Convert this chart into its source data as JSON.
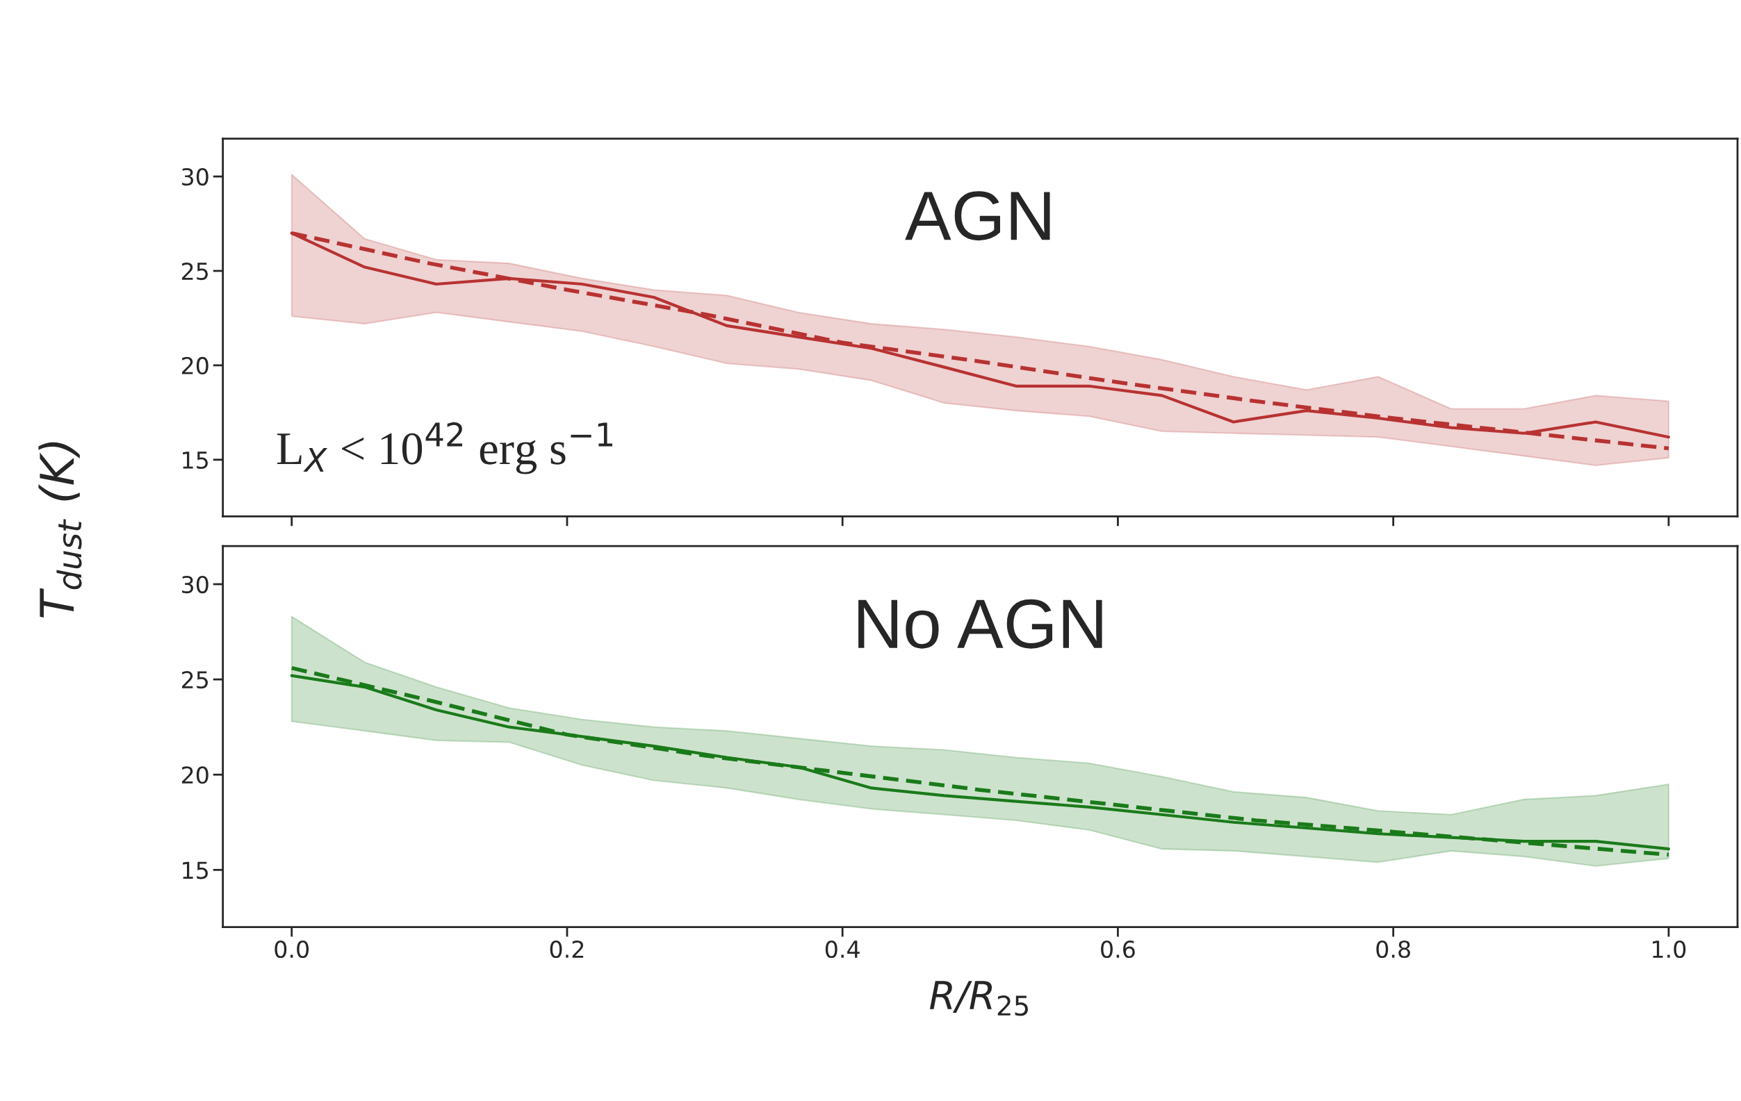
{
  "chart_data": [
    {
      "type": "line",
      "ylabel": "T$_{dust}$ (K)",
      "annotations": [
        "AGN",
        "L$_{X}$ < 10$^{42}$ erg s$^{−1}$"
      ],
      "xlim": [
        -0.05,
        1.05
      ],
      "xticks": [
        0.0,
        0.2,
        0.4,
        0.6,
        0.8,
        1.0
      ],
      "ylim": [
        12,
        32
      ],
      "yticks": [
        15,
        20,
        25,
        30
      ],
      "tick_labels": "y",
      "grid": false,
      "legend": false,
      "x": [
        0,
        0.053,
        0.105,
        0.158,
        0.211,
        0.263,
        0.316,
        0.368,
        0.421,
        0.474,
        0.526,
        0.579,
        0.632,
        0.684,
        0.737,
        0.789,
        0.842,
        0.895,
        0.947,
        1.0
      ],
      "series": [
        {
          "color": "#b83232",
          "line_style": "solid",
          "values": [
            27.0,
            25.2,
            24.3,
            24.6,
            24.3,
            23.6,
            22.1,
            21.5,
            20.9,
            19.9,
            18.9,
            18.9,
            18.4,
            17.0,
            17.6,
            17.2,
            16.7,
            16.4,
            17.0,
            16.2
          ],
          "upper": [
            30.1,
            26.7,
            25.6,
            25.4,
            24.6,
            24.0,
            23.7,
            22.8,
            22.2,
            21.9,
            21.5,
            21.0,
            20.3,
            19.4,
            18.7,
            19.4,
            17.7,
            17.7,
            18.4,
            18.1
          ],
          "lower": [
            22.6,
            22.2,
            22.8,
            22.3,
            21.8,
            21.0,
            20.1,
            19.8,
            19.2,
            18.0,
            17.6,
            17.3,
            16.5,
            16.4,
            16.3,
            16.2,
            15.7,
            15.2,
            14.7,
            15.1
          ]
        },
        {
          "color": "#b83232",
          "line_style": "dashed",
          "x": [
            0,
            0.1,
            0.2,
            0.3,
            0.4,
            0.5,
            0.6,
            0.7,
            0.8,
            0.9,
            1.0
          ],
          "values": [
            27.0,
            25.4,
            24.0,
            22.7,
            21.2,
            20.2,
            19.1,
            18.1,
            17.2,
            16.4,
            15.6
          ]
        }
      ]
    },
    {
      "type": "line",
      "xlabel": "R/R$_{25}$",
      "annotations": [
        "No AGN"
      ],
      "xlim": [
        -0.05,
        1.05
      ],
      "xticks": [
        {
          "value": 0,
          "label": "0.0"
        },
        0.2,
        0.4,
        0.6,
        0.8,
        {
          "value": 1,
          "label": "1.0"
        }
      ],
      "ylim": [
        12,
        32
      ],
      "yticks": [
        15,
        20,
        25,
        30
      ],
      "grid": false,
      "legend": false,
      "x": [
        0,
        0.053,
        0.105,
        0.158,
        0.211,
        0.263,
        0.316,
        0.368,
        0.421,
        0.474,
        0.526,
        0.579,
        0.632,
        0.684,
        0.737,
        0.789,
        0.842,
        0.895,
        0.947,
        1.0
      ],
      "series": [
        {
          "color": "#1a7a1a",
          "line_style": "solid",
          "values": [
            25.2,
            24.6,
            23.4,
            22.5,
            22.0,
            21.5,
            20.9,
            20.4,
            19.3,
            18.9,
            18.6,
            18.3,
            17.9,
            17.5,
            17.2,
            16.9,
            16.7,
            16.5,
            16.5,
            16.1
          ],
          "upper": [
            28.3,
            25.9,
            24.6,
            23.5,
            22.9,
            22.5,
            22.3,
            21.9,
            21.5,
            21.3,
            20.9,
            20.6,
            19.9,
            19.1,
            18.8,
            18.1,
            17.9,
            18.7,
            18.9,
            19.5
          ],
          "lower": [
            22.8,
            22.3,
            21.8,
            21.7,
            20.5,
            19.7,
            19.3,
            18.7,
            18.2,
            17.9,
            17.6,
            17.1,
            16.1,
            16.0,
            15.7,
            15.4,
            16.0,
            15.7,
            15.2,
            15.6
          ]
        },
        {
          "color": "#1a7a1a",
          "line_style": "dashed",
          "x": [
            0,
            0.1,
            0.2,
            0.3,
            0.4,
            0.5,
            0.6,
            0.7,
            0.8,
            0.9,
            1.0
          ],
          "values": [
            25.6,
            23.9,
            22.1,
            21.0,
            20.1,
            19.2,
            18.4,
            17.6,
            17.0,
            16.4,
            15.8
          ]
        }
      ]
    }
  ]
}
